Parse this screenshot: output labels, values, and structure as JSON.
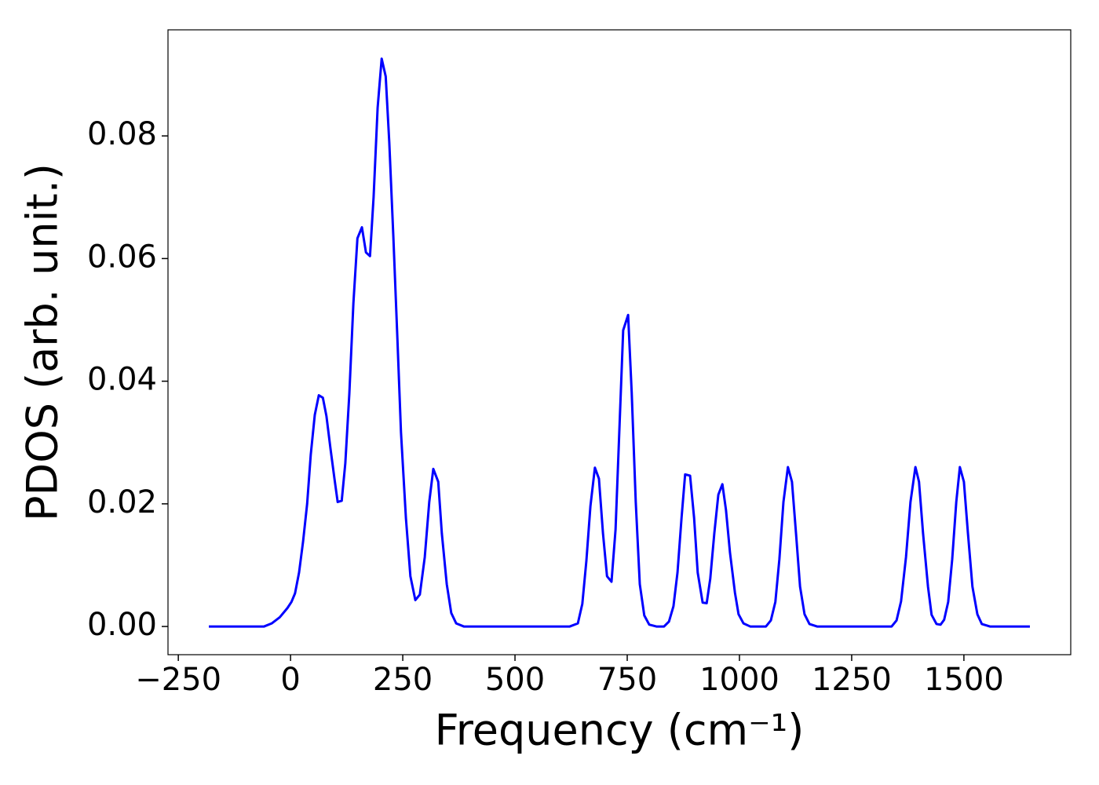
{
  "chart_data": {
    "type": "line",
    "xlabel": "Frequency (cm⁻¹)",
    "ylabel": "PDOS (arb. unit.)",
    "xlim": [
      -273,
      1738
    ],
    "ylim": [
      -0.0046,
      0.0973
    ],
    "xticks": [
      {
        "value": -250,
        "label": "−250"
      },
      0,
      250,
      500,
      750,
      1000,
      1250,
      1500
    ],
    "yticks": [
      {
        "value": 0,
        "label": "0.00"
      },
      {
        "value": 0.02,
        "label": "0.02"
      },
      {
        "value": 0.04,
        "label": "0.04"
      },
      {
        "value": 0.06,
        "label": "0.06"
      },
      {
        "value": 0.08,
        "label": "0.08"
      }
    ],
    "grid": false,
    "series": [
      {
        "color": "#0000ff",
        "x": [
          -182,
          -59,
          -42,
          -24,
          -7,
          2,
          10,
          19,
          28,
          37,
          45,
          54,
          63,
          72,
          80,
          89,
          98,
          105,
          114,
          122,
          131,
          140,
          149,
          159,
          168,
          177,
          185,
          194,
          203,
          212,
          220,
          229,
          238,
          246,
          257,
          267,
          278,
          288,
          299,
          309,
          318,
          329,
          337,
          348,
          358,
          369,
          386,
          622,
          640,
          650,
          659,
          668,
          678,
          687,
          696,
          705,
          715,
          724,
          733,
          741,
          752,
          760,
          769,
          778,
          788,
          799,
          815,
          832,
          843,
          853,
          862,
          871,
          879,
          890,
          899,
          907,
          918,
          927,
          935,
          944,
          953,
          962,
          970,
          979,
          990,
          998,
          1009,
          1024,
          1059,
          1070,
          1080,
          1089,
          1098,
          1108,
          1117,
          1126,
          1135,
          1145,
          1156,
          1173,
          1339,
          1350,
          1360,
          1371,
          1381,
          1392,
          1400,
          1409,
          1420,
          1428,
          1439,
          1448,
          1456,
          1465,
          1474,
          1483,
          1491,
          1500,
          1509,
          1519,
          1530,
          1540,
          1558,
          1647
        ],
        "values": [
          0,
          0,
          0.0005,
          0.0015,
          0.003,
          0.004,
          0.0054,
          0.0088,
          0.0139,
          0.02,
          0.028,
          0.0345,
          0.0377,
          0.0373,
          0.0343,
          0.029,
          0.024,
          0.0203,
          0.0205,
          0.0266,
          0.038,
          0.0527,
          0.0633,
          0.0651,
          0.061,
          0.0604,
          0.07,
          0.0846,
          0.0926,
          0.0897,
          0.0789,
          0.0636,
          0.047,
          0.0317,
          0.0177,
          0.0082,
          0.0043,
          0.0052,
          0.0113,
          0.0203,
          0.0257,
          0.0236,
          0.0152,
          0.0069,
          0.0022,
          0.0005,
          0,
          0,
          0.0005,
          0.0037,
          0.0107,
          0.0196,
          0.0259,
          0.0241,
          0.0152,
          0.0082,
          0.0073,
          0.0158,
          0.033,
          0.0483,
          0.0508,
          0.0381,
          0.0203,
          0.0069,
          0.0018,
          0.0003,
          0,
          0,
          0.0008,
          0.0033,
          0.0088,
          0.0177,
          0.0248,
          0.0246,
          0.0177,
          0.0088,
          0.0039,
          0.0038,
          0.0078,
          0.0152,
          0.0215,
          0.0232,
          0.019,
          0.012,
          0.0055,
          0.002,
          0.0005,
          0,
          0,
          0.001,
          0.004,
          0.011,
          0.0203,
          0.026,
          0.0236,
          0.0152,
          0.0065,
          0.002,
          0.0004,
          0,
          0,
          0.001,
          0.0041,
          0.0113,
          0.0203,
          0.026,
          0.0236,
          0.0152,
          0.0065,
          0.0019,
          0.0004,
          0.0003,
          0.0011,
          0.004,
          0.011,
          0.0203,
          0.026,
          0.0236,
          0.0152,
          0.0065,
          0.002,
          0.0004,
          0,
          0
        ]
      }
    ]
  }
}
